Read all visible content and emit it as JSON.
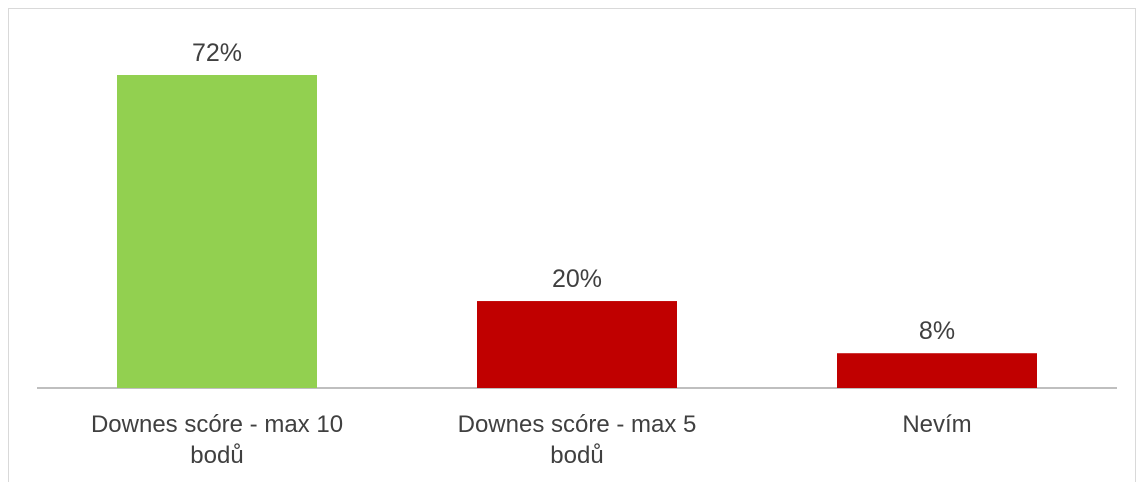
{
  "chart_data": {
    "type": "bar",
    "categories": [
      [
        "Downes scóre - max 10",
        "bodů"
      ],
      [
        "Downes scóre - max 5",
        "bodů"
      ],
      [
        "Nevím"
      ]
    ],
    "values": [
      72,
      20,
      8
    ],
    "value_labels": [
      "72%",
      "20%",
      "8%"
    ],
    "colors": [
      "#92d050",
      "#c00000",
      "#c00000"
    ],
    "ylim": [
      0,
      80
    ],
    "grid": false,
    "legend": "none",
    "title": "",
    "xlabel": "",
    "ylabel": ""
  }
}
